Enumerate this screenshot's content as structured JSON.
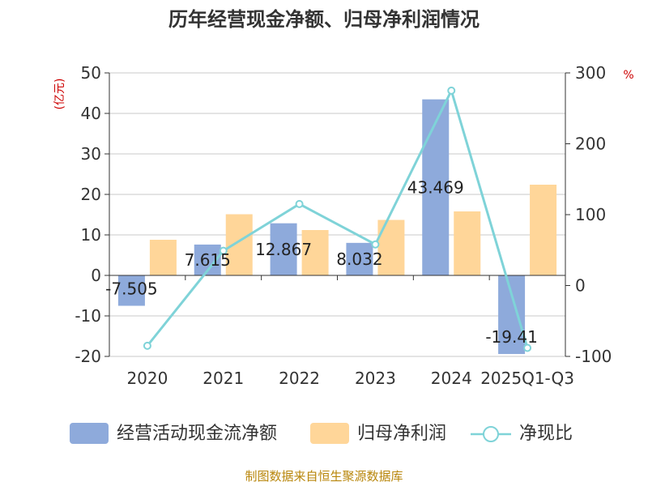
{
  "chart_data": {
    "type": "bar",
    "title": "历年经营现金净额、归母净利润情况",
    "categories": [
      "2020",
      "2021",
      "2022",
      "2023",
      "2024",
      "2025Q1-Q3"
    ],
    "y_left": {
      "unit": "(亿元)",
      "ticks": [
        "50",
        "40",
        "30",
        "20",
        "10",
        "0",
        "-10",
        "-20"
      ],
      "range": [
        -20,
        50
      ]
    },
    "y_right": {
      "unit": "%",
      "ticks": [
        "300",
        "200",
        "100",
        "0",
        "-100"
      ],
      "range": [
        -100,
        300
      ]
    },
    "grid": true,
    "legend_position": "bottom",
    "series": [
      {
        "name": "经营活动现金流净额",
        "type": "bar",
        "axis": "left",
        "color": "#8eaadb",
        "values": [
          -7.505,
          7.615,
          12.867,
          8.032,
          43.469,
          -19.41
        ],
        "labels": [
          "-7.505",
          "7.615",
          "12.867",
          "8.032",
          "43.469",
          "-19.41"
        ]
      },
      {
        "name": "归母净利润",
        "type": "bar",
        "axis": "left",
        "color": "#ffd699",
        "values": [
          8.8,
          15.1,
          11.2,
          13.7,
          15.8,
          22.4
        ]
      },
      {
        "name": "净现比",
        "type": "line",
        "axis": "right",
        "color": "#7fd3d8",
        "values": [
          -85,
          49,
          115,
          58,
          275,
          -88
        ]
      }
    ]
  },
  "source": "制图数据来自恒生聚源数据库"
}
